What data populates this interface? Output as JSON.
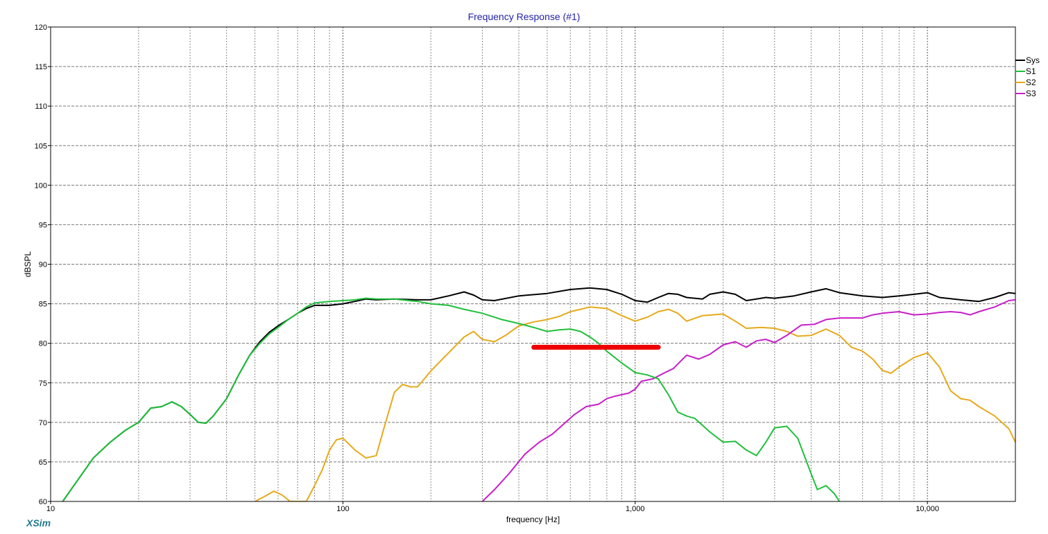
{
  "app": {
    "logo_text": "XSim"
  },
  "chart_data": {
    "type": "line",
    "title": "Frequency Response (#1)",
    "xlabel": "frequency [Hz]",
    "ylabel": "dBSPL",
    "x_scale": "log",
    "xlim": [
      10,
      20000
    ],
    "ylim": [
      60,
      120
    ],
    "grid": true,
    "legend_position": "top-right",
    "x_tick_labels": [
      {
        "value": 10,
        "label": "10"
      },
      {
        "value": 100,
        "label": "100"
      },
      {
        "value": 1000,
        "label": "1,000"
      },
      {
        "value": 10000,
        "label": "10,000"
      }
    ],
    "y_ticks": [
      60,
      65,
      70,
      75,
      80,
      85,
      90,
      95,
      100,
      105,
      110,
      115,
      120
    ],
    "series": [
      {
        "name": "Sys",
        "color": "#000000",
        "points": [
          [
            11,
            60
          ],
          [
            12,
            62
          ],
          [
            14,
            65.5
          ],
          [
            16,
            67.5
          ],
          [
            18,
            69
          ],
          [
            20,
            70
          ],
          [
            22,
            71.8
          ],
          [
            24,
            72
          ],
          [
            26,
            72.6
          ],
          [
            28,
            72
          ],
          [
            30,
            71
          ],
          [
            32,
            70
          ],
          [
            34,
            69.9
          ],
          [
            36,
            70.8
          ],
          [
            40,
            73
          ],
          [
            44,
            76
          ],
          [
            48,
            78.5
          ],
          [
            52,
            80.2
          ],
          [
            56,
            81.4
          ],
          [
            60,
            82.2
          ],
          [
            65,
            83
          ],
          [
            70,
            83.8
          ],
          [
            75,
            84.4
          ],
          [
            80,
            84.8
          ],
          [
            90,
            84.8
          ],
          [
            100,
            85
          ],
          [
            110,
            85.3
          ],
          [
            120,
            85.6
          ],
          [
            130,
            85.5
          ],
          [
            150,
            85.6
          ],
          [
            180,
            85.5
          ],
          [
            200,
            85.5
          ],
          [
            230,
            86
          ],
          [
            260,
            86.5
          ],
          [
            280,
            86.1
          ],
          [
            300,
            85.5
          ],
          [
            330,
            85.4
          ],
          [
            400,
            86
          ],
          [
            500,
            86.3
          ],
          [
            600,
            86.8
          ],
          [
            700,
            87
          ],
          [
            800,
            86.8
          ],
          [
            900,
            86.2
          ],
          [
            1000,
            85.4
          ],
          [
            1100,
            85.2
          ],
          [
            1200,
            85.8
          ],
          [
            1300,
            86.3
          ],
          [
            1400,
            86.2
          ],
          [
            1500,
            85.8
          ],
          [
            1700,
            85.6
          ],
          [
            1800,
            86.2
          ],
          [
            2000,
            86.5
          ],
          [
            2200,
            86.2
          ],
          [
            2400,
            85.4
          ],
          [
            2600,
            85.6
          ],
          [
            2800,
            85.8
          ],
          [
            3000,
            85.7
          ],
          [
            3500,
            86
          ],
          [
            4000,
            86.5
          ],
          [
            4500,
            86.9
          ],
          [
            5000,
            86.4
          ],
          [
            6000,
            86
          ],
          [
            7000,
            85.8
          ],
          [
            8000,
            86
          ],
          [
            9000,
            86.2
          ],
          [
            10000,
            86.4
          ],
          [
            11000,
            85.8
          ],
          [
            13000,
            85.5
          ],
          [
            15000,
            85.3
          ],
          [
            17000,
            85.8
          ],
          [
            19000,
            86.4
          ],
          [
            20000,
            86.3
          ]
        ]
      },
      {
        "name": "S1",
        "color": "#1fbf3a",
        "points": [
          [
            11,
            60
          ],
          [
            12,
            62
          ],
          [
            14,
            65.5
          ],
          [
            16,
            67.5
          ],
          [
            18,
            69
          ],
          [
            20,
            70
          ],
          [
            22,
            71.8
          ],
          [
            24,
            72
          ],
          [
            26,
            72.6
          ],
          [
            28,
            72
          ],
          [
            30,
            71
          ],
          [
            32,
            70
          ],
          [
            34,
            69.9
          ],
          [
            36,
            70.8
          ],
          [
            40,
            73
          ],
          [
            44,
            76
          ],
          [
            48,
            78.5
          ],
          [
            52,
            80
          ],
          [
            56,
            81.2
          ],
          [
            60,
            82
          ],
          [
            65,
            83
          ],
          [
            70,
            83.8
          ],
          [
            75,
            84.6
          ],
          [
            80,
            85.1
          ],
          [
            90,
            85.3
          ],
          [
            100,
            85.4
          ],
          [
            110,
            85.5
          ],
          [
            120,
            85.7
          ],
          [
            130,
            85.6
          ],
          [
            150,
            85.6
          ],
          [
            180,
            85.3
          ],
          [
            200,
            85
          ],
          [
            230,
            84.8
          ],
          [
            260,
            84.3
          ],
          [
            300,
            83.8
          ],
          [
            350,
            83
          ],
          [
            400,
            82.5
          ],
          [
            450,
            82
          ],
          [
            500,
            81.5
          ],
          [
            550,
            81.7
          ],
          [
            600,
            81.8
          ],
          [
            650,
            81.5
          ],
          [
            700,
            80.8
          ],
          [
            750,
            80
          ],
          [
            800,
            79
          ],
          [
            900,
            77.5
          ],
          [
            1000,
            76.3
          ],
          [
            1100,
            76
          ],
          [
            1200,
            75.5
          ],
          [
            1300,
            73.5
          ],
          [
            1400,
            71.3
          ],
          [
            1500,
            70.8
          ],
          [
            1600,
            70.5
          ],
          [
            1800,
            68.8
          ],
          [
            2000,
            67.5
          ],
          [
            2200,
            67.6
          ],
          [
            2400,
            66.5
          ],
          [
            2600,
            65.8
          ],
          [
            2800,
            67.5
          ],
          [
            3000,
            69.3
          ],
          [
            3300,
            69.5
          ],
          [
            3600,
            68
          ],
          [
            4000,
            63.5
          ],
          [
            4200,
            61.5
          ],
          [
            4500,
            62
          ],
          [
            4800,
            61
          ],
          [
            5000,
            60
          ]
        ]
      },
      {
        "name": "S2",
        "color": "#e6a91a",
        "points": [
          [
            50,
            60
          ],
          [
            55,
            60.8
          ],
          [
            58,
            61.3
          ],
          [
            62,
            60.8
          ],
          [
            66,
            60
          ],
          [
            75,
            60
          ],
          [
            80,
            62
          ],
          [
            85,
            64
          ],
          [
            90,
            66.5
          ],
          [
            95,
            67.8
          ],
          [
            100,
            68
          ],
          [
            110,
            66.5
          ],
          [
            120,
            65.5
          ],
          [
            130,
            65.8
          ],
          [
            140,
            70
          ],
          [
            150,
            73.8
          ],
          [
            160,
            74.8
          ],
          [
            170,
            74.5
          ],
          [
            180,
            74.5
          ],
          [
            190,
            75.5
          ],
          [
            200,
            76.5
          ],
          [
            230,
            78.8
          ],
          [
            260,
            80.8
          ],
          [
            280,
            81.5
          ],
          [
            300,
            80.5
          ],
          [
            330,
            80.2
          ],
          [
            360,
            81
          ],
          [
            400,
            82.2
          ],
          [
            450,
            82.7
          ],
          [
            500,
            83
          ],
          [
            550,
            83.4
          ],
          [
            600,
            84
          ],
          [
            650,
            84.3
          ],
          [
            700,
            84.6
          ],
          [
            800,
            84.4
          ],
          [
            900,
            83.5
          ],
          [
            1000,
            82.8
          ],
          [
            1100,
            83.3
          ],
          [
            1200,
            84
          ],
          [
            1300,
            84.3
          ],
          [
            1400,
            83.8
          ],
          [
            1500,
            82.8
          ],
          [
            1700,
            83.5
          ],
          [
            2000,
            83.7
          ],
          [
            2200,
            82.8
          ],
          [
            2400,
            81.9
          ],
          [
            2700,
            82
          ],
          [
            3000,
            81.9
          ],
          [
            3300,
            81.5
          ],
          [
            3600,
            80.9
          ],
          [
            4000,
            81
          ],
          [
            4500,
            81.8
          ],
          [
            5000,
            81
          ],
          [
            5500,
            79.5
          ],
          [
            6000,
            79
          ],
          [
            6500,
            78
          ],
          [
            7000,
            76.6
          ],
          [
            7500,
            76.2
          ],
          [
            8000,
            77
          ],
          [
            9000,
            78.2
          ],
          [
            10000,
            78.8
          ],
          [
            11000,
            77
          ],
          [
            12000,
            74
          ],
          [
            13000,
            73
          ],
          [
            14000,
            72.8
          ],
          [
            15000,
            72
          ],
          [
            17000,
            70.8
          ],
          [
            19000,
            69.2
          ],
          [
            20000,
            67.5
          ]
        ]
      },
      {
        "name": "S3",
        "color": "#c81ec8",
        "points": [
          [
            300,
            60
          ],
          [
            330,
            61.5
          ],
          [
            370,
            63.5
          ],
          [
            420,
            66
          ],
          [
            470,
            67.5
          ],
          [
            520,
            68.5
          ],
          [
            570,
            69.8
          ],
          [
            620,
            71
          ],
          [
            680,
            72
          ],
          [
            750,
            72.3
          ],
          [
            800,
            73
          ],
          [
            850,
            73.3
          ],
          [
            950,
            73.7
          ],
          [
            1000,
            74.2
          ],
          [
            1050,
            75.2
          ],
          [
            1150,
            75.5
          ],
          [
            1250,
            76.2
          ],
          [
            1350,
            76.8
          ],
          [
            1500,
            78.5
          ],
          [
            1650,
            78
          ],
          [
            1800,
            78.6
          ],
          [
            2000,
            79.8
          ],
          [
            2200,
            80.2
          ],
          [
            2400,
            79.5
          ],
          [
            2600,
            80.3
          ],
          [
            2800,
            80.5
          ],
          [
            3000,
            80.1
          ],
          [
            3300,
            81
          ],
          [
            3700,
            82.3
          ],
          [
            4100,
            82.4
          ],
          [
            4500,
            83
          ],
          [
            5000,
            83.2
          ],
          [
            6000,
            83.2
          ],
          [
            6500,
            83.6
          ],
          [
            7000,
            83.8
          ],
          [
            8000,
            84
          ],
          [
            9000,
            83.6
          ],
          [
            10000,
            83.7
          ],
          [
            11000,
            83.9
          ],
          [
            12000,
            84
          ],
          [
            13000,
            83.9
          ],
          [
            14000,
            83.6
          ],
          [
            15000,
            84
          ],
          [
            17000,
            84.6
          ],
          [
            19000,
            85.4
          ],
          [
            20000,
            85.5
          ]
        ]
      }
    ],
    "annotations": [
      {
        "type": "bar-marker",
        "color": "#ee0000",
        "x_start": 450,
        "x_end": 1200,
        "y": 79.5
      }
    ]
  }
}
